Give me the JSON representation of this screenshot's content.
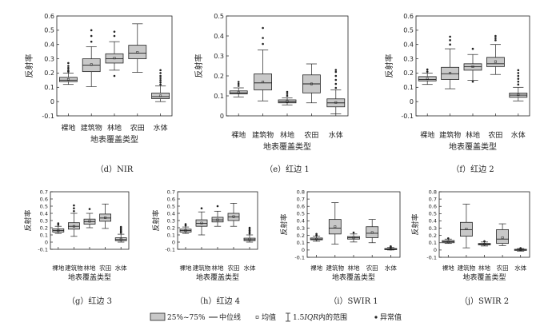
{
  "chart_data": [
    {
      "type": "box",
      "caption": "（d）NIR",
      "xlabel": "地表覆盖类型",
      "ylabel": "反射率",
      "ylim": [
        -0.1,
        0.6
      ],
      "yticks": [
        -0.1,
        0,
        0.1,
        0.2,
        0.3,
        0.4,
        0.5,
        0.6
      ],
      "yticklabels": [
        "-0.1",
        "0",
        "0.1",
        "0.2",
        "0.3",
        "0.4",
        "0.5",
        "0.6"
      ],
      "categories": [
        "裸地",
        "建筑物",
        "林地",
        "农田",
        "水体"
      ],
      "boxes": [
        {
          "q1": 0.14,
          "median": 0.15,
          "q3": 0.17,
          "mean": 0.155,
          "whisker_low": 0.12,
          "whisker_high": 0.2,
          "outliers": [
            0.21,
            0.22,
            0.235,
            0.25,
            0.27
          ]
        },
        {
          "q1": 0.21,
          "median": 0.255,
          "q3": 0.3,
          "mean": 0.26,
          "whisker_low": 0.105,
          "whisker_high": 0.385,
          "outliers": [
            0.42,
            0.46,
            0.5
          ]
        },
        {
          "q1": 0.27,
          "median": 0.3,
          "q3": 0.335,
          "mean": 0.305,
          "whisker_low": 0.22,
          "whisker_high": 0.42,
          "outliers": [
            0.18,
            0.46,
            0.49
          ]
        },
        {
          "q1": 0.3,
          "median": 0.34,
          "q3": 0.395,
          "mean": 0.345,
          "whisker_low": 0.205,
          "whisker_high": 0.545,
          "outliers": []
        },
        {
          "q1": 0.02,
          "median": 0.035,
          "q3": 0.06,
          "mean": 0.04,
          "whisker_low": 0.0,
          "whisker_high": 0.11,
          "outliers": [
            0.12,
            0.135,
            0.15,
            0.165,
            0.18,
            0.2,
            0.22
          ]
        }
      ]
    },
    {
      "type": "box",
      "caption": "（e）红边 1",
      "xlabel": "地表覆盖类型",
      "ylabel": "反射率",
      "ylim": [
        0,
        0.5
      ],
      "yticks": [
        0,
        0.1,
        0.2,
        0.3,
        0.4,
        0.5
      ],
      "yticklabels": [
        "0",
        "0.1",
        "0.2",
        "0.3",
        "0.4",
        "0.5"
      ],
      "categories": [
        "裸地",
        "建筑物",
        "林地",
        "农田",
        "水体"
      ],
      "boxes": [
        {
          "q1": 0.11,
          "median": 0.115,
          "q3": 0.125,
          "mean": 0.117,
          "whisker_low": 0.095,
          "whisker_high": 0.14,
          "outliers": [
            0.15,
            0.16,
            0.17
          ]
        },
        {
          "q1": 0.13,
          "median": 0.165,
          "q3": 0.21,
          "mean": 0.17,
          "whisker_low": 0.075,
          "whisker_high": 0.33,
          "outliers": [
            0.36,
            0.39,
            0.44
          ]
        },
        {
          "q1": 0.065,
          "median": 0.07,
          "q3": 0.08,
          "mean": 0.072,
          "whisker_low": 0.055,
          "whisker_high": 0.09,
          "outliers": [
            0.1,
            0.11,
            0.12
          ]
        },
        {
          "q1": 0.115,
          "median": 0.16,
          "q3": 0.205,
          "mean": 0.16,
          "whisker_low": 0.065,
          "whisker_high": 0.26,
          "outliers": []
        },
        {
          "q1": 0.045,
          "median": 0.065,
          "q3": 0.085,
          "mean": 0.067,
          "whisker_low": 0.01,
          "whisker_high": 0.13,
          "outliers": [
            0.14,
            0.16,
            0.18,
            0.2,
            0.22,
            0.23
          ]
        }
      ]
    },
    {
      "type": "box",
      "caption": "（f）红边 2",
      "xlabel": "地表覆盖类型",
      "ylabel": "反射率",
      "ylim": [
        -0.1,
        0.6
      ],
      "yticks": [
        -0.1,
        0,
        0.1,
        0.2,
        0.3,
        0.4,
        0.5,
        0.6
      ],
      "yticklabels": [
        "-0.1",
        "0",
        "0.1",
        "0.2",
        "0.3",
        "0.4",
        "0.5",
        "0.6"
      ],
      "categories": [
        "裸地",
        "建筑物",
        "林地",
        "农田",
        "水体"
      ],
      "boxes": [
        {
          "q1": 0.145,
          "median": 0.155,
          "q3": 0.175,
          "mean": 0.16,
          "whisker_low": 0.12,
          "whisker_high": 0.2,
          "outliers": [
            0.21,
            0.225
          ]
        },
        {
          "q1": 0.155,
          "median": 0.195,
          "q3": 0.24,
          "mean": 0.2,
          "whisker_low": 0.09,
          "whisker_high": 0.37,
          "outliers": [
            0.4,
            0.43,
            0.455
          ]
        },
        {
          "q1": 0.22,
          "median": 0.245,
          "q3": 0.265,
          "mean": 0.245,
          "whisker_low": 0.15,
          "whisker_high": 0.33,
          "outliers": [
            0.14,
            0.37
          ]
        },
        {
          "q1": 0.245,
          "median": 0.265,
          "q3": 0.31,
          "mean": 0.28,
          "whisker_low": 0.19,
          "whisker_high": 0.4,
          "outliers": [
            0.43,
            0.445,
            0.46
          ]
        },
        {
          "q1": 0.03,
          "median": 0.045,
          "q3": 0.06,
          "mean": 0.047,
          "whisker_low": 0.005,
          "whisker_high": 0.1,
          "outliers": [
            0.12,
            0.14,
            0.16,
            0.18,
            0.2,
            0.22
          ]
        }
      ]
    },
    {
      "type": "box",
      "caption": "（g）红边 3",
      "xlabel": "地表覆盖类型",
      "ylabel": "反射率",
      "ylim": [
        -0.1,
        0.7
      ],
      "yticks": [
        -0.1,
        0,
        0.1,
        0.2,
        0.3,
        0.4,
        0.5,
        0.6,
        0.7
      ],
      "yticklabels": [
        "-0.1",
        "0",
        "0.1",
        "0.2",
        "0.3",
        "0.4",
        "0.5",
        "0.6",
        "0.7"
      ],
      "categories": [
        "裸地",
        "建筑物",
        "林地",
        "农田",
        "水体"
      ],
      "boxes": [
        {
          "q1": 0.14,
          "median": 0.16,
          "q3": 0.185,
          "mean": 0.16,
          "whisker_low": 0.12,
          "whisker_high": 0.22,
          "outliers": [
            0.24,
            0.26
          ]
        },
        {
          "q1": 0.18,
          "median": 0.22,
          "q3": 0.27,
          "mean": 0.22,
          "whisker_low": 0.08,
          "whisker_high": 0.4,
          "outliers": [
            0.43,
            0.47,
            0.51
          ]
        },
        {
          "q1": 0.25,
          "median": 0.285,
          "q3": 0.32,
          "mean": 0.29,
          "whisker_low": 0.2,
          "whisker_high": 0.4,
          "outliers": [
            0.46
          ]
        },
        {
          "q1": 0.29,
          "median": 0.335,
          "q3": 0.39,
          "mean": 0.34,
          "whisker_low": 0.19,
          "whisker_high": 0.53,
          "outliers": []
        },
        {
          "q1": 0.02,
          "median": 0.035,
          "q3": 0.06,
          "mean": 0.04,
          "whisker_low": 0.0,
          "whisker_high": 0.11,
          "outliers": [
            0.13,
            0.15,
            0.17,
            0.19,
            0.21
          ]
        }
      ]
    },
    {
      "type": "box",
      "caption": "（h）红边 4",
      "xlabel": "地表覆盖类型",
      "ylabel": "反射率",
      "ylim": [
        -0.1,
        0.7
      ],
      "yticks": [
        -0.1,
        0,
        0.1,
        0.2,
        0.3,
        0.4,
        0.5,
        0.6,
        0.7
      ],
      "yticklabels": [
        "-0.1",
        "0",
        "0.1",
        "0.2",
        "0.3",
        "0.4",
        "0.5",
        "0.6",
        "0.7"
      ],
      "categories": [
        "裸地",
        "建筑物",
        "林地",
        "农田",
        "水体"
      ],
      "boxes": [
        {
          "q1": 0.14,
          "median": 0.16,
          "q3": 0.18,
          "mean": 0.16,
          "whisker_low": 0.12,
          "whisker_high": 0.21,
          "outliers": [
            0.23,
            0.25
          ]
        },
        {
          "q1": 0.22,
          "median": 0.26,
          "q3": 0.31,
          "mean": 0.265,
          "whisker_low": 0.1,
          "whisker_high": 0.42,
          "outliers": [
            0.47
          ]
        },
        {
          "q1": 0.28,
          "median": 0.31,
          "q3": 0.345,
          "mean": 0.31,
          "whisker_low": 0.22,
          "whisker_high": 0.43,
          "outliers": [
            0.5
          ]
        },
        {
          "q1": 0.3,
          "median": 0.35,
          "q3": 0.4,
          "mean": 0.355,
          "whisker_low": 0.22,
          "whisker_high": 0.54,
          "outliers": []
        },
        {
          "q1": 0.02,
          "median": 0.035,
          "q3": 0.055,
          "mean": 0.04,
          "whisker_low": 0.0,
          "whisker_high": 0.1,
          "outliers": [
            0.12,
            0.14,
            0.16,
            0.18,
            0.2
          ]
        }
      ]
    },
    {
      "type": "box",
      "caption": "（i）SWIR 1",
      "xlabel": "地表覆盖类型",
      "ylabel": "反射率",
      "ylim": [
        -0.1,
        0.8
      ],
      "yticks": [
        -0.1,
        0,
        0.1,
        0.2,
        0.3,
        0.4,
        0.5,
        0.6,
        0.7,
        0.8
      ],
      "yticklabels": [
        "-0.1",
        "0",
        "0.1",
        "0.2",
        "0.3",
        "0.4",
        "0.5",
        "0.6",
        "0.7",
        "0.8"
      ],
      "categories": [
        "裸地",
        "建筑物",
        "林地",
        "农田",
        "水体"
      ],
      "boxes": [
        {
          "q1": 0.14,
          "median": 0.15,
          "q3": 0.165,
          "mean": 0.15,
          "whisker_low": 0.12,
          "whisker_high": 0.19,
          "outliers": [
            0.2,
            0.22
          ]
        },
        {
          "q1": 0.22,
          "median": 0.3,
          "q3": 0.42,
          "mean": 0.32,
          "whisker_low": 0.08,
          "whisker_high": 0.65,
          "outliers": []
        },
        {
          "q1": 0.15,
          "median": 0.17,
          "q3": 0.185,
          "mean": 0.17,
          "whisker_low": 0.11,
          "whisker_high": 0.22,
          "outliers": [
            0.24
          ]
        },
        {
          "q1": 0.17,
          "median": 0.23,
          "q3": 0.32,
          "mean": 0.24,
          "whisker_low": 0.1,
          "whisker_high": 0.42,
          "outliers": []
        },
        {
          "q1": 0.005,
          "median": 0.01,
          "q3": 0.02,
          "mean": 0.012,
          "whisker_low": 0.0,
          "whisker_high": 0.035,
          "outliers": [
            0.04,
            0.05
          ]
        }
      ]
    },
    {
      "type": "box",
      "caption": "（j）SWIR 2",
      "xlabel": "地表覆盖类型",
      "ylabel": "反射率",
      "ylim": [
        -0.1,
        0.8
      ],
      "yticks": [
        -0.1,
        0,
        0.1,
        0.2,
        0.3,
        0.4,
        0.5,
        0.6,
        0.7,
        0.8
      ],
      "yticklabels": [
        "-0.1",
        "0",
        "0.1",
        "0.2",
        "0.3",
        "0.4",
        "0.5",
        "0.6",
        "0.7",
        "0.8"
      ],
      "categories": [
        "裸地",
        "建筑物",
        "林地",
        "农田",
        "水体"
      ],
      "boxes": [
        {
          "q1": 0.1,
          "median": 0.115,
          "q3": 0.13,
          "mean": 0.115,
          "whisker_low": 0.09,
          "whisker_high": 0.15,
          "outliers": [
            0.16
          ]
        },
        {
          "q1": 0.19,
          "median": 0.28,
          "q3": 0.38,
          "mean": 0.29,
          "whisker_low": 0.03,
          "whisker_high": 0.63,
          "outliers": []
        },
        {
          "q1": 0.07,
          "median": 0.08,
          "q3": 0.09,
          "mean": 0.08,
          "whisker_low": 0.055,
          "whisker_high": 0.11,
          "outliers": [
            0.12
          ]
        },
        {
          "q1": 0.09,
          "median": 0.15,
          "q3": 0.28,
          "mean": 0.17,
          "whisker_low": 0.06,
          "whisker_high": 0.36,
          "outliers": []
        },
        {
          "q1": -0.005,
          "median": 0.0,
          "q3": 0.01,
          "mean": 0.002,
          "whisker_low": -0.015,
          "whisker_high": 0.02,
          "outliers": [
            0.025
          ]
        }
      ]
    }
  ],
  "legend": {
    "box_label": "25%~75%",
    "median_label": "中位线",
    "mean_label": "均值",
    "range_prefix": "1.5",
    "range_var": "IQR",
    "range_suffix": "内的范围",
    "outlier_label": "异常值"
  },
  "colors": {
    "box_fill": "#c8c8c8",
    "stroke": "#222222"
  }
}
